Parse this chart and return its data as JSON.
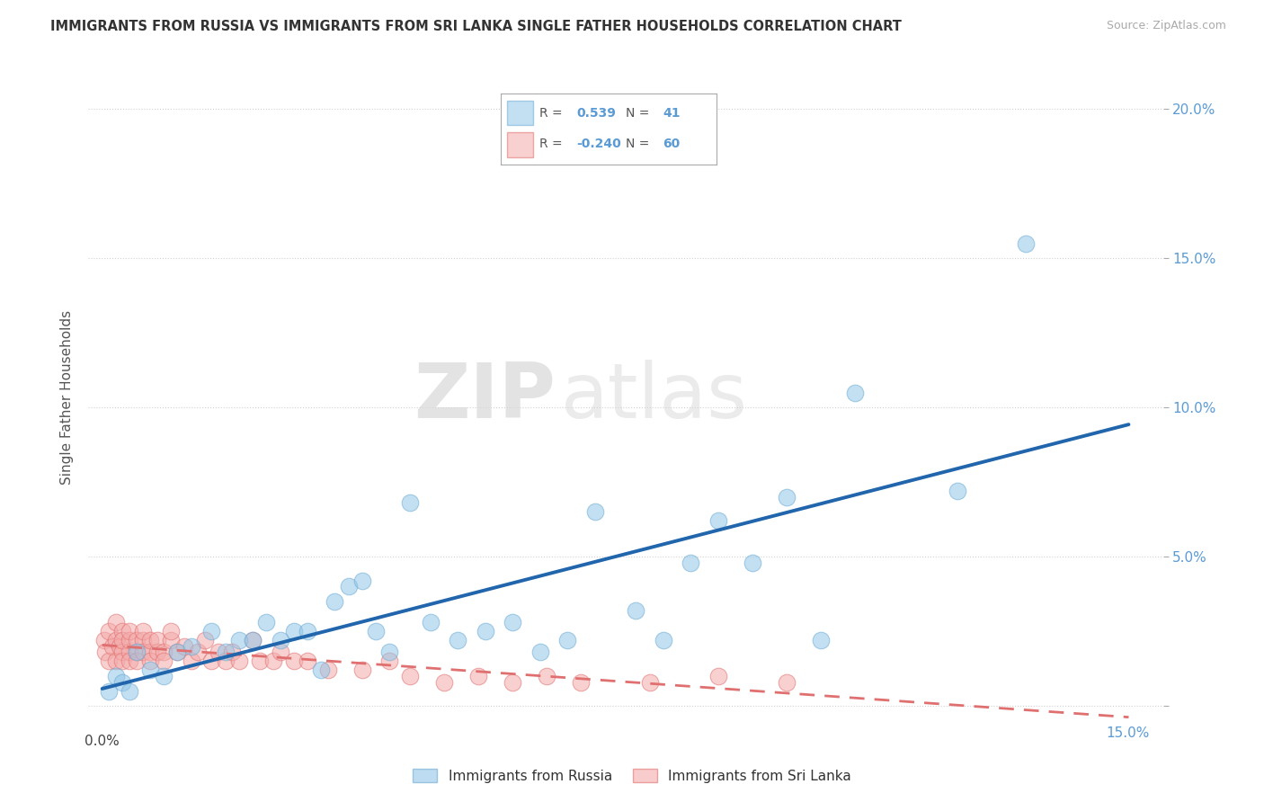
{
  "title": "IMMIGRANTS FROM RUSSIA VS IMMIGRANTS FROM SRI LANKA SINGLE FATHER HOUSEHOLDS CORRELATION CHART",
  "source": "Source: ZipAtlas.com",
  "ylabel": "Single Father Households",
  "xlim": [
    -0.002,
    0.155
  ],
  "ylim": [
    -0.008,
    0.215
  ],
  "xticks": [
    0.0,
    0.05,
    0.1,
    0.15
  ],
  "yticks": [
    0.0,
    0.05,
    0.1,
    0.15,
    0.2
  ],
  "xticklabels": [
    "0.0%",
    "",
    "",
    ""
  ],
  "yticklabels_right": [
    "",
    "5.0%",
    "10.0%",
    "15.0%",
    "20.0%"
  ],
  "russia_color": "#93c6e8",
  "russia_edge": "#6aaad4",
  "srilanka_color": "#f4aaaa",
  "srilanka_edge": "#e07070",
  "russia_R": 0.539,
  "russia_N": 41,
  "srilanka_R": -0.24,
  "srilanka_N": 60,
  "watermark_zip": "ZIP",
  "watermark_atlas": "atlas",
  "background_color": "#ffffff",
  "grid_color": "#cccccc",
  "russia_x": [
    0.001,
    0.002,
    0.003,
    0.004,
    0.005,
    0.007,
    0.009,
    0.011,
    0.013,
    0.016,
    0.018,
    0.02,
    0.022,
    0.024,
    0.026,
    0.028,
    0.03,
    0.032,
    0.034,
    0.036,
    0.038,
    0.04,
    0.042,
    0.045,
    0.048,
    0.052,
    0.056,
    0.06,
    0.064,
    0.068,
    0.072,
    0.078,
    0.082,
    0.086,
    0.09,
    0.095,
    0.1,
    0.105,
    0.11,
    0.125,
    0.135
  ],
  "russia_y": [
    0.005,
    0.01,
    0.008,
    0.005,
    0.018,
    0.012,
    0.01,
    0.018,
    0.02,
    0.025,
    0.018,
    0.022,
    0.022,
    0.028,
    0.022,
    0.025,
    0.025,
    0.012,
    0.035,
    0.04,
    0.042,
    0.025,
    0.018,
    0.068,
    0.028,
    0.022,
    0.025,
    0.028,
    0.018,
    0.022,
    0.065,
    0.032,
    0.022,
    0.048,
    0.062,
    0.048,
    0.07,
    0.022,
    0.105,
    0.072,
    0.155
  ],
  "srilanka_x": [
    0.0003,
    0.0005,
    0.001,
    0.001,
    0.0015,
    0.002,
    0.002,
    0.002,
    0.0025,
    0.003,
    0.003,
    0.003,
    0.003,
    0.004,
    0.004,
    0.004,
    0.004,
    0.005,
    0.005,
    0.005,
    0.006,
    0.006,
    0.006,
    0.007,
    0.007,
    0.007,
    0.008,
    0.008,
    0.009,
    0.009,
    0.01,
    0.01,
    0.011,
    0.012,
    0.013,
    0.014,
    0.015,
    0.016,
    0.017,
    0.018,
    0.019,
    0.02,
    0.022,
    0.023,
    0.025,
    0.026,
    0.028,
    0.03,
    0.033,
    0.038,
    0.042,
    0.045,
    0.05,
    0.055,
    0.06,
    0.065,
    0.07,
    0.08,
    0.09,
    0.1
  ],
  "srilanka_y": [
    0.022,
    0.018,
    0.025,
    0.015,
    0.02,
    0.022,
    0.028,
    0.015,
    0.02,
    0.018,
    0.025,
    0.015,
    0.022,
    0.018,
    0.022,
    0.025,
    0.015,
    0.018,
    0.022,
    0.015,
    0.022,
    0.018,
    0.025,
    0.018,
    0.022,
    0.015,
    0.018,
    0.022,
    0.018,
    0.015,
    0.022,
    0.025,
    0.018,
    0.02,
    0.015,
    0.018,
    0.022,
    0.015,
    0.018,
    0.015,
    0.018,
    0.015,
    0.022,
    0.015,
    0.015,
    0.018,
    0.015,
    0.015,
    0.012,
    0.012,
    0.015,
    0.01,
    0.008,
    0.01,
    0.008,
    0.01,
    0.008,
    0.008,
    0.01,
    0.008
  ],
  "trendline_russia_color": "#2166ac",
  "trendline_srilanka_color": "#e07070",
  "legend_box_color": "#5b9bd5",
  "legend_R_color": "#5b9bd5",
  "legend_N_color": "#5b9bd5"
}
